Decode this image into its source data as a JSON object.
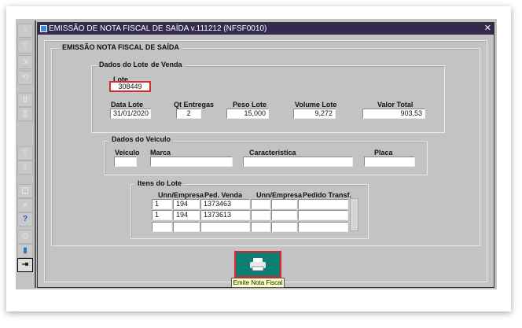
{
  "window": {
    "title": "EMISSÃO DE NOTA FISCAL DE SAÍDA v.111212 (NFSF0010)",
    "close": "✕"
  },
  "form": {
    "title": "EMISSÃO NOTA FISCAL DE SAÍDA",
    "lote_group": {
      "title": "Dados do Lote",
      "title_suffix": "de Venda",
      "lote": {
        "label": "Lote",
        "value": "308449"
      },
      "data_lote": {
        "label": "Data Lote",
        "value": "31/01/2020"
      },
      "qt_entregas": {
        "label": "Qt Entregas",
        "value": "2"
      },
      "peso_lote": {
        "label": "Peso Lote",
        "value": "15,000"
      },
      "volume_lote": {
        "label": "Volume Lote",
        "value": "9,272"
      },
      "valor_total": {
        "label": "Valor Total",
        "value": "903,53"
      }
    },
    "veiculo_group": {
      "title": "Dados do Veiculo",
      "veiculo": {
        "label": "Veiculo",
        "value": ""
      },
      "marca": {
        "label": "Marca",
        "value": ""
      },
      "caracteristica": {
        "label": "Caracteristica",
        "value": ""
      },
      "placa": {
        "label": "Placa",
        "value": ""
      }
    },
    "itens_group": {
      "title": "Itens do Lote",
      "headers": [
        "Unn/Empresa",
        "Ped. Venda",
        "Unn/Empresa",
        "Pedido Transf."
      ],
      "rows": [
        [
          "1",
          "194",
          "1373463",
          "",
          "",
          ""
        ],
        [
          "1",
          "194",
          "1373613",
          "",
          "",
          ""
        ],
        [
          "",
          "",
          "",
          "",
          "",
          ""
        ]
      ]
    },
    "print_button": {
      "icon": "printer-icon",
      "tooltip": "Emite Nota Fiscal"
    }
  },
  "toolbar": {
    "icons": [
      "next-icon",
      "prev-icon",
      "last-icon",
      "refresh-icon",
      "new-record-icon",
      "edit-record-icon",
      "up-icon",
      "down-icon",
      "notes-icon",
      "search-icon",
      "help-icon",
      "print-icon",
      "delete-icon",
      "exit-icon"
    ]
  },
  "colors": {
    "titlebar": "#34294e",
    "button": "#0e7d74",
    "highlight": "#e0262b",
    "tooltip": "#ffffc0"
  }
}
